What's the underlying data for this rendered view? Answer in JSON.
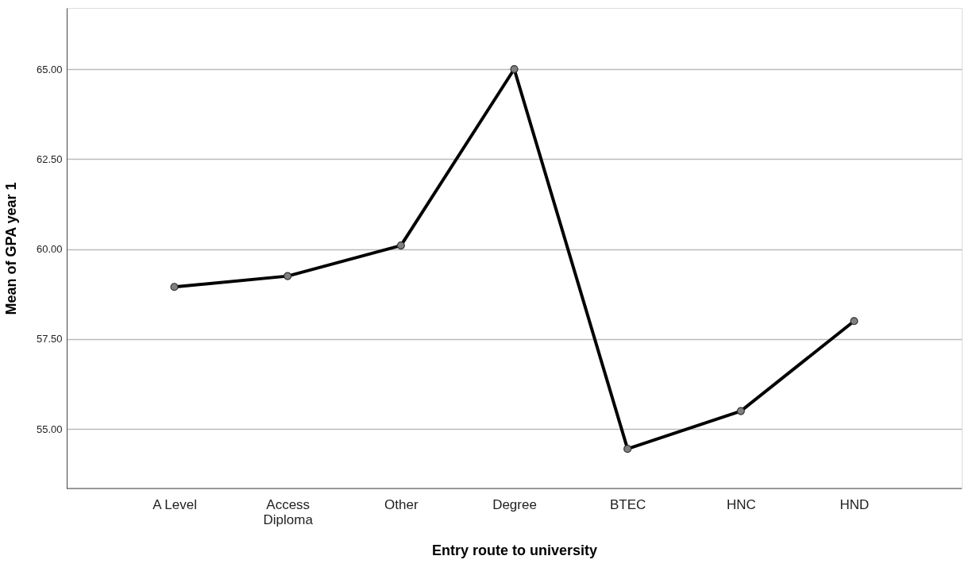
{
  "chart_data": {
    "type": "line",
    "xlabel": "Entry route to university",
    "ylabel": "Mean of GPA year 1",
    "categories": [
      "A Level",
      "Access Diploma",
      "Other",
      "Degree",
      "BTEC",
      "HNC",
      "HND"
    ],
    "series": [
      {
        "color": "#000000",
        "values": [
          58.95,
          59.25,
          60.1,
          65.0,
          54.45,
          55.5,
          58.0
        ]
      }
    ],
    "ylim": [
      53.35,
      66.7
    ],
    "yticks": [
      {
        "value": 55,
        "label": "55.00"
      },
      {
        "value": 57.5,
        "label": "57.50"
      },
      {
        "value": 60,
        "label": "60.00"
      },
      {
        "value": 62.5,
        "label": "62.50"
      },
      {
        "value": 65,
        "label": "65.00"
      }
    ],
    "grid": "y",
    "marker": "circle",
    "line_style": "solid",
    "legend": false
  }
}
